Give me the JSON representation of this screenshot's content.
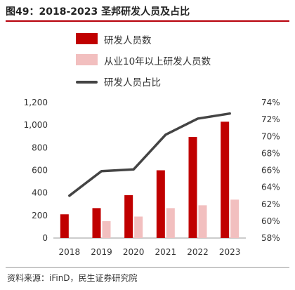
{
  "header": {
    "title": "图49：2018-2023 圣邦研发人员及占比"
  },
  "footer": {
    "source": "资料来源：iFinD，民生证券研究院"
  },
  "colors": {
    "rd_staff": "#c00000",
    "senior_staff": "#f2bfbf",
    "ratio_line": "#444444"
  },
  "chart_data": {
    "type": "bar",
    "title": "图49：2018-2023 圣邦研发人员及占比",
    "categories": [
      "2018",
      "2019",
      "2020",
      "2021",
      "2022",
      "2023"
    ],
    "series": [
      {
        "name": "研发人员数",
        "type": "bar",
        "axis": "left",
        "values": [
          210,
          265,
          380,
          600,
          895,
          1030
        ]
      },
      {
        "name": "从业10年以上研发人员数",
        "type": "bar",
        "axis": "left",
        "values": [
          null,
          150,
          190,
          265,
          290,
          340
        ]
      },
      {
        "name": "研发人员占比",
        "type": "line",
        "axis": "right",
        "values": [
          63.0,
          65.9,
          66.1,
          70.2,
          72.1,
          72.7
        ]
      }
    ],
    "left_axis": {
      "ylim": [
        0,
        1200
      ],
      "ticks": [
        "0",
        "200",
        "400",
        "600",
        "800",
        "1,000",
        "1,200"
      ]
    },
    "right_axis": {
      "ylim": [
        58,
        74
      ],
      "ticks": [
        "58%",
        "60%",
        "62%",
        "64%",
        "66%",
        "68%",
        "70%",
        "72%",
        "74%"
      ]
    },
    "legend": {
      "placement": "top-left"
    }
  }
}
